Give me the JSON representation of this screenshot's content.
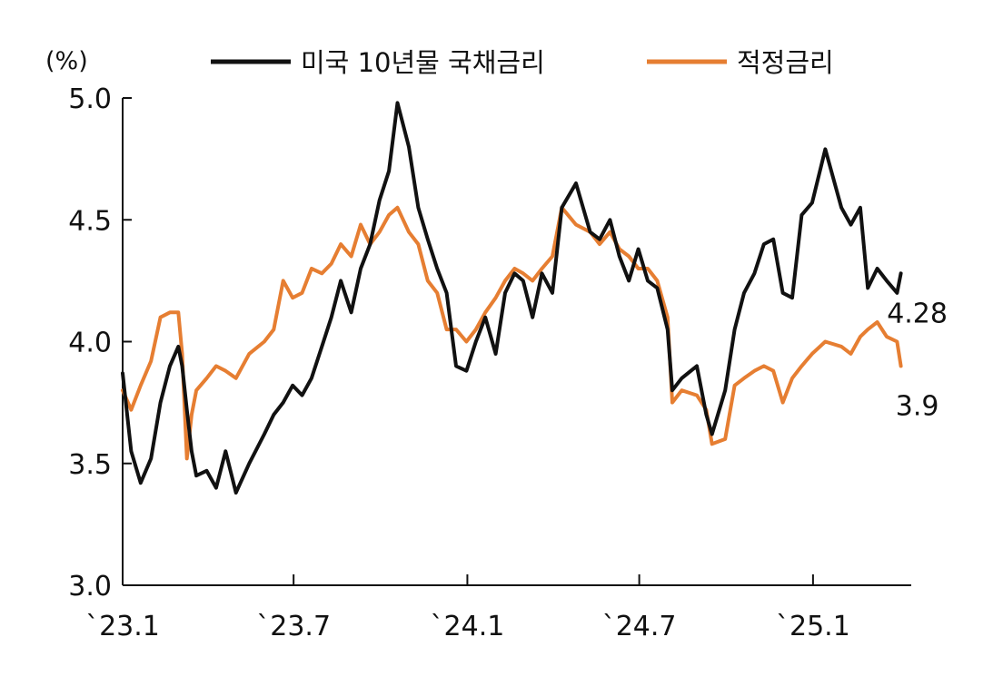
{
  "chart_data": {
    "type": "line",
    "ylabel": "(%)",
    "ylim": [
      3.0,
      5.0
    ],
    "yticks": [
      "3.0",
      "3.5",
      "4.0",
      "4.5",
      "5.0"
    ],
    "ytick_values": [
      3.0,
      3.5,
      4.0,
      4.5,
      5.0
    ],
    "xlim": [
      "2023-01-01",
      "2025-04-15"
    ],
    "xticks": [
      "`23.1",
      "`23.7",
      "`24.1",
      "`24.7",
      "`25.1"
    ],
    "xtick_dates": [
      "2023-01-01",
      "2023-07-01",
      "2024-01-01",
      "2024-07-01",
      "2025-01-01"
    ],
    "legend_position": "top",
    "grid": false,
    "series": [
      {
        "name": "미국 10년물 국채금리",
        "color": "#111111",
        "end_label": "4.28",
        "x": [
          "2023-01-01",
          "2023-01-10",
          "2023-01-20",
          "2023-01-31",
          "2023-02-10",
          "2023-02-20",
          "2023-03-01",
          "2023-03-05",
          "2023-03-10",
          "2023-03-15",
          "2023-03-20",
          "2023-03-31",
          "2023-04-10",
          "2023-04-20",
          "2023-05-01",
          "2023-05-15",
          "2023-05-31",
          "2023-06-10",
          "2023-06-20",
          "2023-06-30",
          "2023-07-10",
          "2023-07-20",
          "2023-07-31",
          "2023-08-10",
          "2023-08-20",
          "2023-08-31",
          "2023-09-10",
          "2023-09-20",
          "2023-09-30",
          "2023-10-10",
          "2023-10-19",
          "2023-10-31",
          "2023-11-10",
          "2023-11-20",
          "2023-11-30",
          "2023-12-10",
          "2023-12-20",
          "2023-12-31",
          "2024-01-10",
          "2024-01-20",
          "2024-01-31",
          "2024-02-10",
          "2024-02-20",
          "2024-02-29",
          "2024-03-10",
          "2024-03-20",
          "2024-03-31",
          "2024-04-10",
          "2024-04-25",
          "2024-05-10",
          "2024-05-20",
          "2024-05-31",
          "2024-06-10",
          "2024-06-20",
          "2024-06-30",
          "2024-07-10",
          "2024-07-20",
          "2024-07-31",
          "2024-08-05",
          "2024-08-15",
          "2024-08-31",
          "2024-09-10",
          "2024-09-16",
          "2024-09-30",
          "2024-10-10",
          "2024-10-20",
          "2024-10-31",
          "2024-11-10",
          "2024-11-20",
          "2024-11-30",
          "2024-12-10",
          "2024-12-20",
          "2024-12-31",
          "2025-01-14",
          "2025-01-31",
          "2025-02-10",
          "2025-02-20",
          "2025-02-28",
          "2025-03-10",
          "2025-03-20",
          "2025-03-31",
          "2025-04-04"
        ],
        "y": [
          3.87,
          3.55,
          3.42,
          3.52,
          3.75,
          3.9,
          3.98,
          3.9,
          3.72,
          3.55,
          3.45,
          3.47,
          3.4,
          3.55,
          3.38,
          3.5,
          3.62,
          3.7,
          3.75,
          3.82,
          3.78,
          3.85,
          3.98,
          4.1,
          4.25,
          4.12,
          4.3,
          4.4,
          4.58,
          4.7,
          4.98,
          4.8,
          4.55,
          4.42,
          4.3,
          4.2,
          3.9,
          3.88,
          4.0,
          4.1,
          3.95,
          4.2,
          4.28,
          4.25,
          4.1,
          4.28,
          4.2,
          4.55,
          4.65,
          4.45,
          4.42,
          4.5,
          4.35,
          4.25,
          4.38,
          4.25,
          4.22,
          4.05,
          3.8,
          3.85,
          3.9,
          3.7,
          3.62,
          3.8,
          4.05,
          4.2,
          4.28,
          4.4,
          4.42,
          4.2,
          4.18,
          4.52,
          4.57,
          4.79,
          4.55,
          4.48,
          4.55,
          4.22,
          4.3,
          4.25,
          4.2,
          4.28
        ]
      },
      {
        "name": "적정금리",
        "color": "#E67E32",
        "end_label": "3.9",
        "x": [
          "2023-01-01",
          "2023-01-10",
          "2023-01-20",
          "2023-01-31",
          "2023-02-10",
          "2023-02-20",
          "2023-03-01",
          "2023-03-05",
          "2023-03-10",
          "2023-03-15",
          "2023-03-20",
          "2023-03-31",
          "2023-04-10",
          "2023-04-20",
          "2023-05-01",
          "2023-05-15",
          "2023-05-31",
          "2023-06-10",
          "2023-06-20",
          "2023-06-30",
          "2023-07-10",
          "2023-07-20",
          "2023-07-31",
          "2023-08-10",
          "2023-08-20",
          "2023-08-31",
          "2023-09-10",
          "2023-09-20",
          "2023-09-30",
          "2023-10-10",
          "2023-10-19",
          "2023-10-31",
          "2023-11-10",
          "2023-11-20",
          "2023-11-30",
          "2023-12-10",
          "2023-12-20",
          "2023-12-31",
          "2024-01-10",
          "2024-01-20",
          "2024-01-31",
          "2024-02-10",
          "2024-02-20",
          "2024-02-29",
          "2024-03-10",
          "2024-03-20",
          "2024-03-31",
          "2024-04-10",
          "2024-04-25",
          "2024-05-10",
          "2024-05-20",
          "2024-05-31",
          "2024-06-10",
          "2024-06-20",
          "2024-06-30",
          "2024-07-10",
          "2024-07-20",
          "2024-07-31",
          "2024-08-05",
          "2024-08-15",
          "2024-08-31",
          "2024-09-10",
          "2024-09-16",
          "2024-09-30",
          "2024-10-10",
          "2024-10-20",
          "2024-10-31",
          "2024-11-10",
          "2024-11-20",
          "2024-11-30",
          "2024-12-10",
          "2024-12-20",
          "2024-12-31",
          "2025-01-14",
          "2025-01-31",
          "2025-02-10",
          "2025-02-20",
          "2025-02-28",
          "2025-03-10",
          "2025-03-20",
          "2025-03-31",
          "2025-04-04"
        ],
        "y": [
          3.8,
          3.72,
          3.82,
          3.92,
          4.1,
          4.12,
          4.12,
          3.95,
          3.52,
          3.7,
          3.8,
          3.85,
          3.9,
          3.88,
          3.85,
          3.95,
          4.0,
          4.05,
          4.25,
          4.18,
          4.2,
          4.3,
          4.28,
          4.32,
          4.4,
          4.35,
          4.48,
          4.4,
          4.45,
          4.52,
          4.55,
          4.45,
          4.4,
          4.25,
          4.2,
          4.05,
          4.05,
          4.0,
          4.05,
          4.12,
          4.18,
          4.25,
          4.3,
          4.28,
          4.25,
          4.3,
          4.35,
          4.55,
          4.48,
          4.45,
          4.4,
          4.45,
          4.38,
          4.35,
          4.3,
          4.3,
          4.25,
          4.1,
          3.75,
          3.8,
          3.78,
          3.72,
          3.58,
          3.6,
          3.82,
          3.85,
          3.88,
          3.9,
          3.88,
          3.75,
          3.85,
          3.9,
          3.95,
          4.0,
          3.98,
          3.95,
          4.02,
          4.05,
          4.08,
          4.02,
          4.0,
          3.9
        ]
      }
    ]
  }
}
